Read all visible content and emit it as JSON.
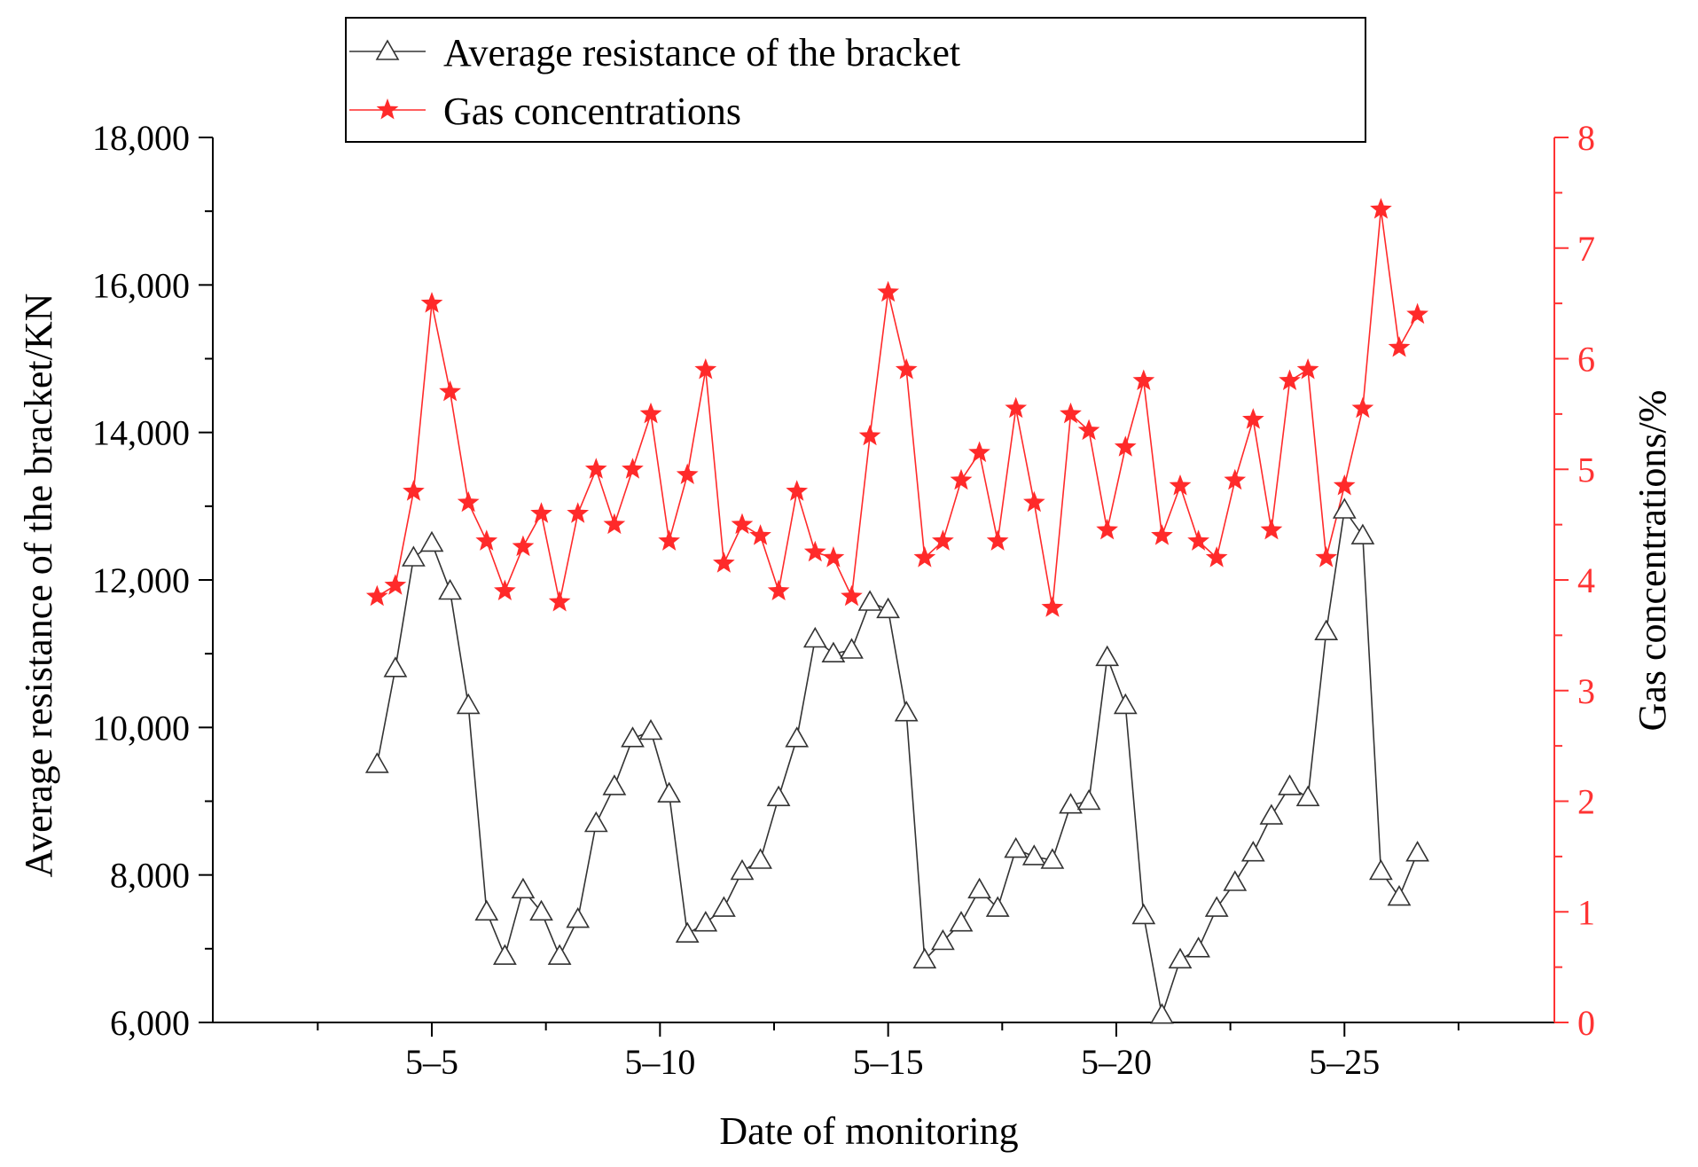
{
  "chart_data": {
    "type": "line",
    "xlabel": "Date of monitoring",
    "ylabel_left": "Average resistance of the bracket/KN",
    "ylabel_right": "Gas concentrations/%",
    "x_ticks": [
      {
        "x": 5,
        "label": "5–5"
      },
      {
        "x": 10,
        "label": "5–10"
      },
      {
        "x": 15,
        "label": "5–15"
      },
      {
        "x": 20,
        "label": "5–20"
      },
      {
        "x": 25,
        "label": "5–25"
      }
    ],
    "xlim": [
      0.2,
      29.6
    ],
    "ylim_left": [
      6000,
      18000
    ],
    "ylim_right": [
      0,
      8
    ],
    "y_ticks_left": [
      {
        "v": 6000,
        "label": "6,000"
      },
      {
        "v": 8000,
        "label": "8,000"
      },
      {
        "v": 10000,
        "label": "10,000"
      },
      {
        "v": 12000,
        "label": "12,000"
      },
      {
        "v": 14000,
        "label": "14,000"
      },
      {
        "v": 16000,
        "label": "16,000"
      },
      {
        "v": 18000,
        "label": "18,000"
      }
    ],
    "y_ticks_right": [
      {
        "v": 0,
        "label": "0"
      },
      {
        "v": 1,
        "label": "1"
      },
      {
        "v": 2,
        "label": "2"
      },
      {
        "v": 3,
        "label": "3"
      },
      {
        "v": 4,
        "label": "4"
      },
      {
        "v": 5,
        "label": "5"
      },
      {
        "v": 6,
        "label": "6"
      },
      {
        "v": 7,
        "label": "7"
      },
      {
        "v": 8,
        "label": "8"
      }
    ],
    "legend_position": "top-left",
    "colors": {
      "resistance": "#000000",
      "gas": "#ff2a2a",
      "right_axis": "#ff3333"
    },
    "series": [
      {
        "name": "Average resistance of the bracket",
        "axis": "left",
        "marker": "triangle",
        "x": [
          3.8,
          4.2,
          4.6,
          5.0,
          5.4,
          5.8,
          6.2,
          6.6,
          7.0,
          7.4,
          7.8,
          8.2,
          8.6,
          9.0,
          9.4,
          9.8,
          10.2,
          10.6,
          11.0,
          11.4,
          11.8,
          12.2,
          12.6,
          13.0,
          13.4,
          13.8,
          14.2,
          14.6,
          15.0,
          15.4,
          15.8,
          16.2,
          16.6,
          17.0,
          17.4,
          17.8,
          18.2,
          18.6,
          19.0,
          19.4,
          19.8,
          20.2,
          20.6,
          21.0,
          21.4,
          21.8,
          22.2,
          22.6,
          23.0,
          23.4,
          23.8,
          24.2,
          24.6,
          25.0,
          25.4,
          25.8,
          26.2,
          26.6
        ],
        "values": [
          9500,
          10800,
          12300,
          12500,
          11850,
          10300,
          7500,
          6900,
          7800,
          7500,
          6900,
          7400,
          8700,
          9200,
          9850,
          9950,
          9100,
          7200,
          7350,
          7550,
          8050,
          8200,
          9050,
          9850,
          11200,
          11000,
          11050,
          11700,
          11600,
          10200,
          6850,
          7100,
          7350,
          7800,
          7550,
          8350,
          8250,
          8200,
          8950,
          9000,
          10950,
          10300,
          7450,
          6100,
          6850,
          7000,
          7550,
          7900,
          8300,
          8800,
          9200,
          9050,
          11300,
          12950,
          12600,
          8050,
          7700,
          8300
        ]
      },
      {
        "name": "Gas concentrations",
        "axis": "right",
        "marker": "star",
        "x": [
          3.8,
          4.2,
          4.6,
          5.0,
          5.4,
          5.8,
          6.2,
          6.6,
          7.0,
          7.4,
          7.8,
          8.2,
          8.6,
          9.0,
          9.4,
          9.8,
          10.2,
          10.6,
          11.0,
          11.4,
          11.8,
          12.2,
          12.6,
          13.0,
          13.4,
          13.8,
          14.2,
          14.6,
          15.0,
          15.4,
          15.8,
          16.2,
          16.6,
          17.0,
          17.4,
          17.8,
          18.2,
          18.6,
          19.0,
          19.4,
          19.8,
          20.2,
          20.6,
          21.0,
          21.4,
          21.8,
          22.2,
          22.6,
          23.0,
          23.4,
          23.8,
          24.2,
          24.6,
          25.0,
          25.4,
          25.8,
          26.2,
          26.6
        ],
        "values": [
          3.85,
          3.95,
          4.8,
          6.5,
          5.7,
          4.7,
          4.35,
          3.9,
          4.3,
          4.6,
          3.8,
          4.6,
          5.0,
          4.5,
          5.0,
          5.5,
          4.35,
          4.95,
          5.9,
          4.15,
          4.5,
          4.4,
          3.9,
          4.8,
          4.25,
          4.2,
          3.85,
          5.3,
          6.6,
          5.9,
          4.2,
          4.35,
          4.9,
          5.15,
          4.35,
          5.55,
          4.7,
          3.75,
          5.5,
          5.35,
          4.45,
          5.2,
          5.8,
          4.4,
          4.85,
          4.35,
          4.2,
          4.9,
          5.45,
          4.45,
          5.8,
          5.9,
          4.2,
          4.85,
          5.55,
          7.35,
          6.1,
          6.4
        ]
      }
    ]
  }
}
